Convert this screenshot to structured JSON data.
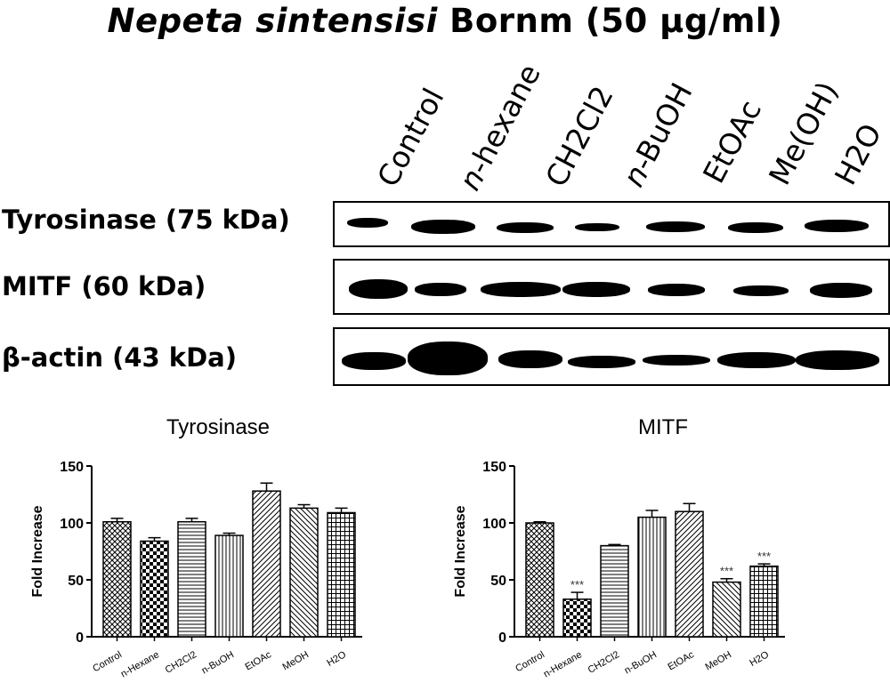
{
  "header": {
    "title_italic": "Nepeta sintensisi",
    "title_rest": " Bornm (50 μg/ml)"
  },
  "lanes": [
    {
      "text": "Control",
      "italic": false
    },
    {
      "text": "n",
      "italic": true,
      "rest": "-hexane"
    },
    {
      "text": "CH2Cl2",
      "italic": false
    },
    {
      "text": "n",
      "italic": true,
      "rest": "-BuOH"
    },
    {
      "text": "EtOAc",
      "italic": false
    },
    {
      "text": "Me(OH)",
      "italic": false
    },
    {
      "text": "H2O",
      "italic": false
    }
  ],
  "blots": [
    {
      "label": "Tyrosinase (75 kDa)"
    },
    {
      "label": "MITF (60 kDa)"
    },
    {
      "label": "β-actin (43 kDa)"
    }
  ],
  "chart_data": [
    {
      "type": "bar",
      "title": "Tyrosinase",
      "ylabel": "Fold Increase",
      "xlabel": "",
      "ylim": [
        0,
        150
      ],
      "yticks": [
        0,
        50,
        100,
        150
      ],
      "categories": [
        "Control",
        "n-Hexane",
        "CH2Cl2",
        "n-BuOH",
        "EtOAc",
        "MeOH",
        "H2O"
      ],
      "values": [
        101,
        84,
        101,
        89,
        128,
        113,
        109
      ],
      "errors": [
        3,
        3,
        3,
        2,
        7,
        3,
        4
      ],
      "annotations": [
        "",
        "",
        "",
        "",
        "",
        "",
        ""
      ]
    },
    {
      "type": "bar",
      "title": "MITF",
      "ylabel": "Fold Increase",
      "xlabel": "",
      "ylim": [
        0,
        150
      ],
      "yticks": [
        0,
        50,
        100,
        150
      ],
      "categories": [
        "Control",
        "n-Hexane",
        "CH2Cl2",
        "n-BuOH",
        "EtOAc",
        "MeOH",
        "H2O"
      ],
      "values": [
        100,
        33,
        80,
        105,
        110,
        48,
        62
      ],
      "errors": [
        1,
        6,
        1,
        6,
        7,
        3,
        2
      ],
      "annotations": [
        "",
        "***",
        "",
        "",
        "",
        "***",
        "***"
      ]
    }
  ]
}
